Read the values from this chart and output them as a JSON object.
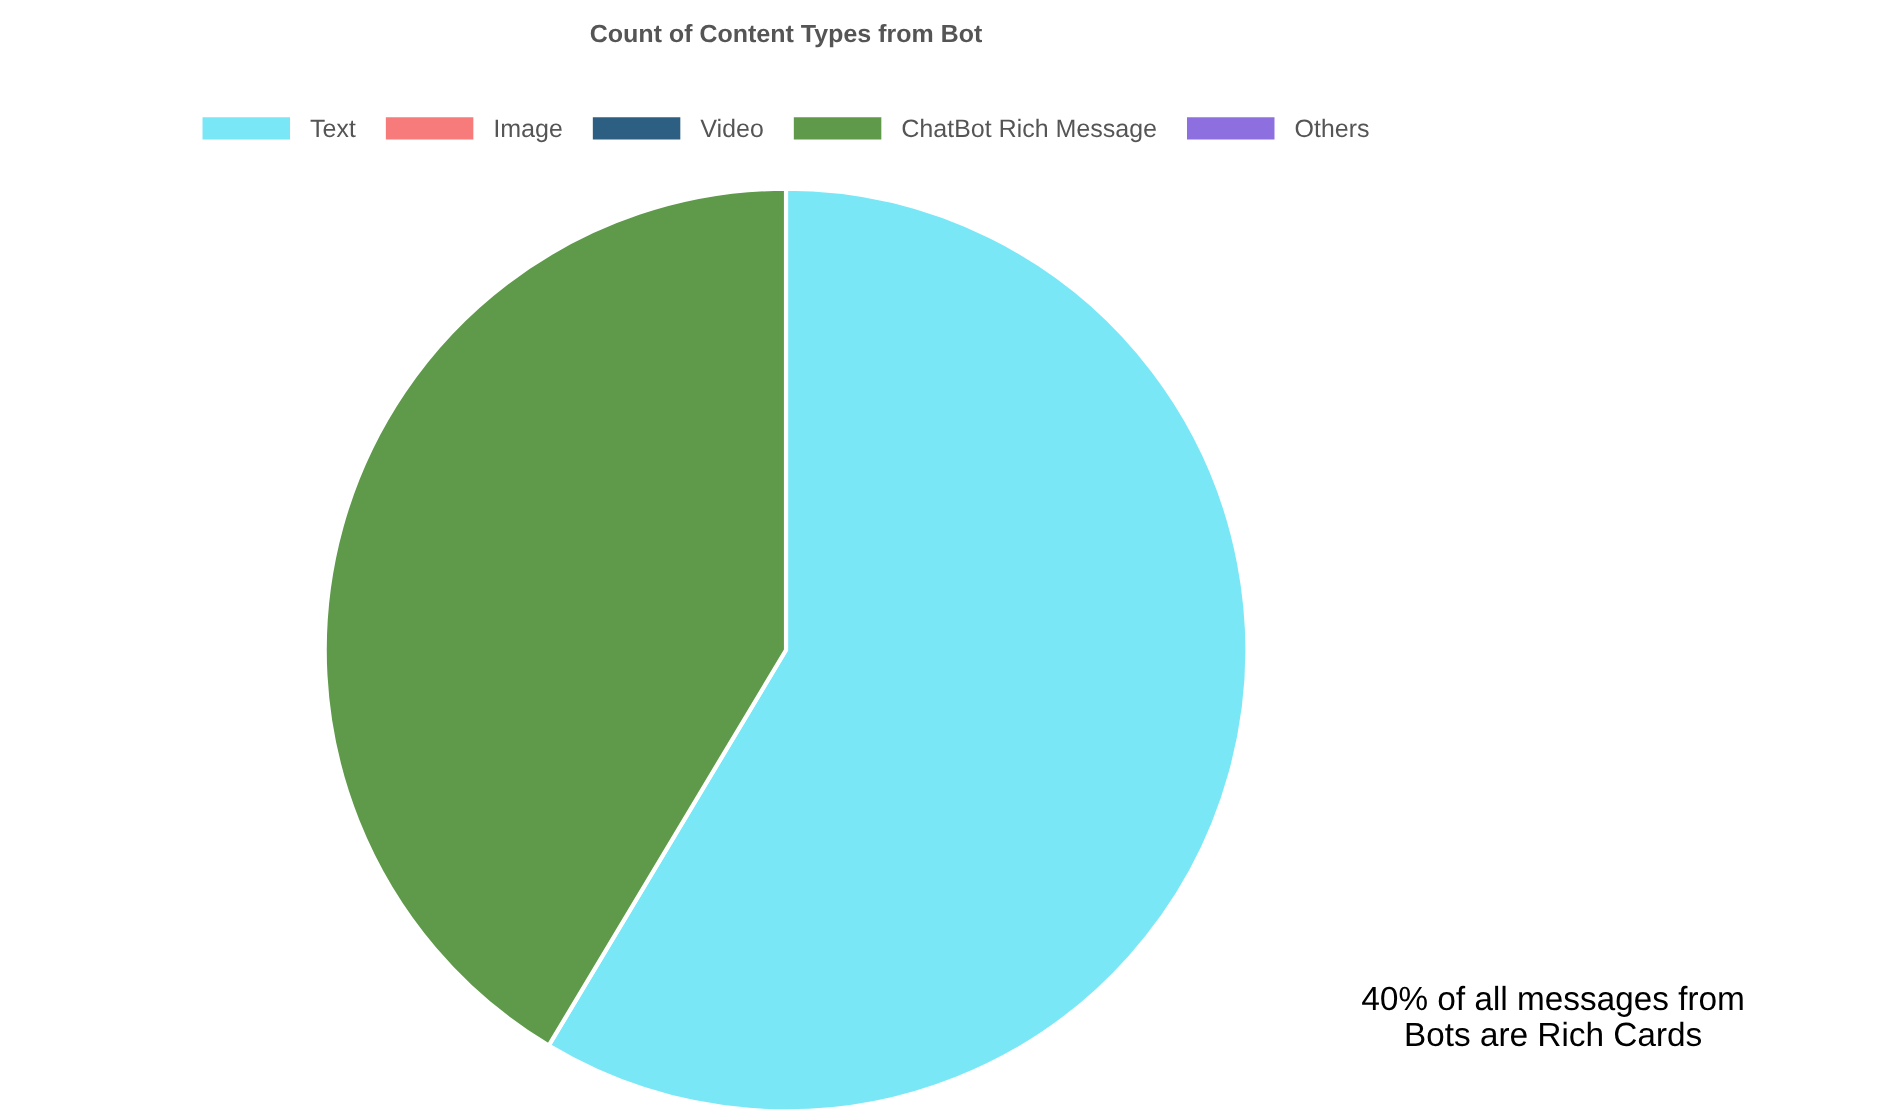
{
  "chart_data": {
    "type": "pie",
    "title": "Count of Content Types from Bot",
    "categories": [
      "Text",
      "Image",
      "Video",
      "ChatBot Rich Message",
      "Others"
    ],
    "values": [
      58.6,
      null,
      null,
      41.4,
      null
    ],
    "colors": [
      "#7ae7f7",
      "#f77b7b",
      "#2c5f82",
      "#5e9a4a",
      "#8e6fe0"
    ],
    "legend": "top",
    "annotations": [
      "40% of all messages from\nBots are Rich Cards"
    ]
  }
}
